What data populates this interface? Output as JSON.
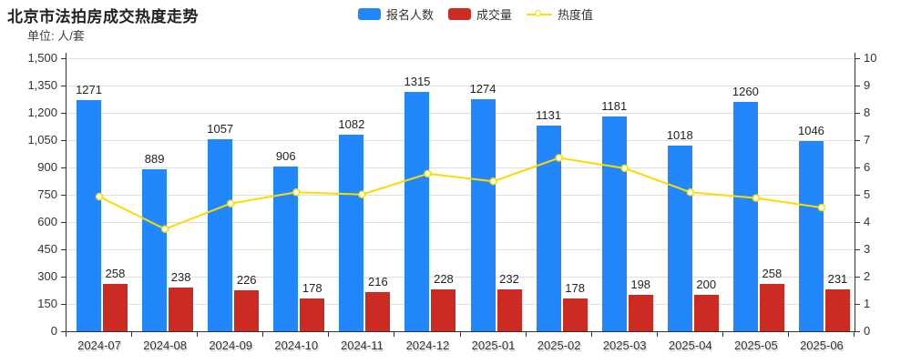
{
  "header": {
    "title": "北京市法拍房成交热度走势",
    "unit_label": "单位: 人/套"
  },
  "legend": {
    "items": [
      {
        "label": "报名人数",
        "swatch": "bar",
        "color": "#2287fb"
      },
      {
        "label": "成交量",
        "swatch": "bar",
        "color": "#cc2b24"
      },
      {
        "label": "热度值",
        "swatch": "line",
        "color": "#fcdb00"
      }
    ]
  },
  "colors": {
    "registrants_blue": "#2287fb",
    "volume_red": "#cc2b24",
    "heat_yellow": "#fcdb00",
    "grid": "#e0e0e0",
    "axis": "#333333"
  },
  "chart_data": {
    "type": "bar",
    "title": "北京市法拍房成交热度走势",
    "unit": "人/套",
    "legend_position": "top",
    "grid": true,
    "categories": [
      "2024-07",
      "2024-08",
      "2024-09",
      "2024-10",
      "2024-11",
      "2024-12",
      "2025-01",
      "2025-02",
      "2025-03",
      "2025-04",
      "2025-05",
      "2025-06"
    ],
    "series": [
      {
        "name": "报名人数",
        "type": "bar",
        "yaxis": "left",
        "color": "#2287fb",
        "values": [
          1271,
          889,
          1057,
          906,
          1082,
          1315,
          1274,
          1131,
          1181,
          1018,
          1260,
          1046
        ]
      },
      {
        "name": "成交量",
        "type": "bar",
        "yaxis": "left",
        "color": "#cc2b24",
        "values": [
          258,
          238,
          226,
          178,
          216,
          228,
          232,
          178,
          198,
          200,
          258,
          231
        ]
      },
      {
        "name": "热度值",
        "type": "line",
        "yaxis": "right",
        "color": "#fcdb00",
        "values": [
          4.93,
          3.74,
          4.68,
          5.09,
          5.01,
          5.77,
          5.49,
          6.35,
          5.97,
          5.09,
          4.88,
          4.53
        ]
      }
    ],
    "left_axis": {
      "min": 0,
      "max": 1500,
      "step": 150,
      "tick_labels": [
        "0",
        "150",
        "300",
        "450",
        "600",
        "750",
        "900",
        "1,050",
        "1,200",
        "1,350",
        "1,500"
      ]
    },
    "right_axis": {
      "min": 0,
      "max": 10,
      "step": 1,
      "tick_labels": [
        "0",
        "1",
        "2",
        "3",
        "4",
        "5",
        "6",
        "7",
        "8",
        "9",
        "10"
      ]
    }
  }
}
